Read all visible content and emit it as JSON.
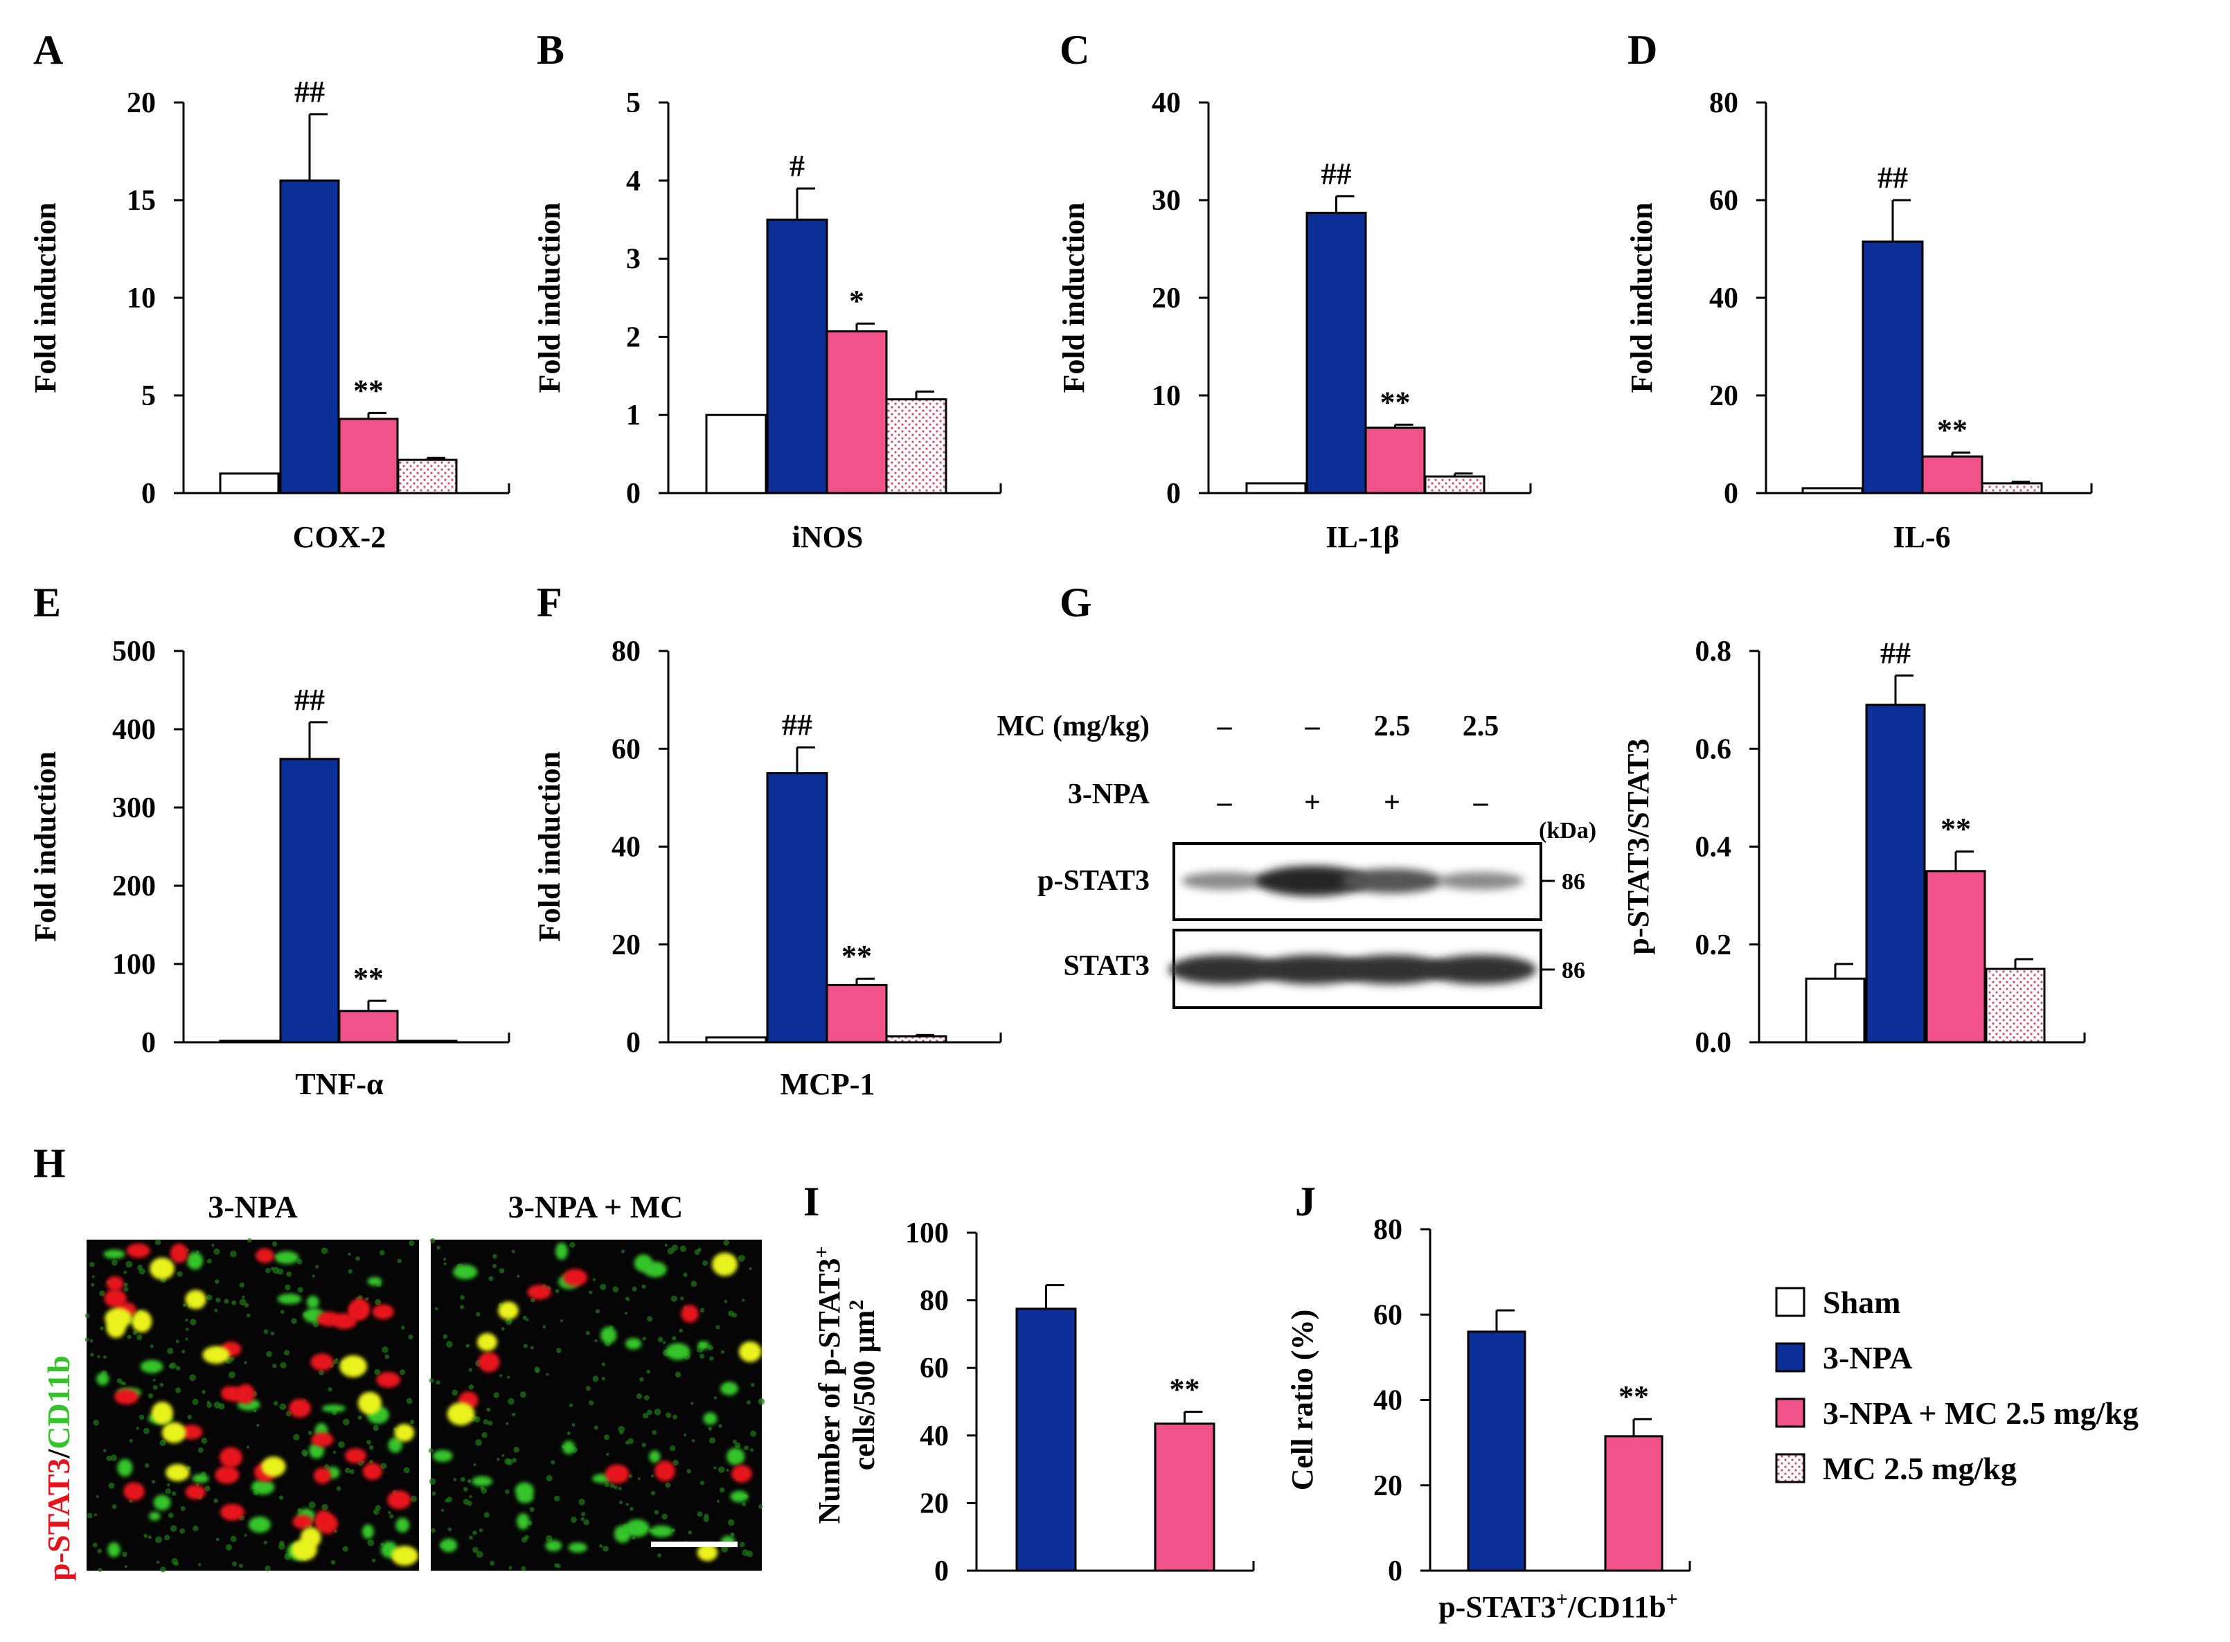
{
  "colors": {
    "sham": "#ffffff",
    "npa": "#0b2f96",
    "npa_mc": "#f2528a",
    "mc": "#ffffff",
    "mc_dot": "#d14b6e",
    "red": "#e8121c",
    "green": "#34c42a"
  },
  "legend": [
    {
      "key": "sham",
      "label": "Sham"
    },
    {
      "key": "npa",
      "label": "3-NPA"
    },
    {
      "key": "npa_mc",
      "label": "3-NPA + MC 2.5 mg/kg"
    },
    {
      "key": "mc",
      "label": "MC 2.5 mg/kg"
    }
  ],
  "chart_data": [
    {
      "panel": "A",
      "type": "bar",
      "title": "",
      "xlabel": "COX-2",
      "ylabel": "Fold induction",
      "ylim": [
        0,
        20
      ],
      "yticks": [
        "0",
        "5",
        "10",
        "15",
        "20"
      ],
      "series": [
        {
          "name": "Sham",
          "value": 1.0,
          "error": 0
        },
        {
          "name": "3-NPA",
          "value": 16.0,
          "error": 3.4
        },
        {
          "name": "3-NPA + MC 2.5 mg/kg",
          "value": 3.8,
          "error": 0.3
        },
        {
          "name": "MC 2.5 mg/kg",
          "value": 1.7,
          "error": 0.1
        }
      ],
      "annotations": [
        {
          "series": 1,
          "text": "##"
        },
        {
          "series": 2,
          "text": "**"
        }
      ]
    },
    {
      "panel": "B",
      "type": "bar",
      "title": "",
      "xlabel": "iNOS",
      "ylabel": "Fold induction",
      "ylim": [
        0,
        5
      ],
      "yticks": [
        "0",
        "1",
        "2",
        "3",
        "4",
        "5"
      ],
      "series": [
        {
          "name": "Sham",
          "value": 1.0,
          "error": 0
        },
        {
          "name": "3-NPA",
          "value": 3.5,
          "error": 0.4
        },
        {
          "name": "3-NPA + MC 2.5 mg/kg",
          "value": 2.07,
          "error": 0.1
        },
        {
          "name": "MC 2.5 mg/kg",
          "value": 1.2,
          "error": 0.1
        }
      ],
      "annotations": [
        {
          "series": 1,
          "text": "#"
        },
        {
          "series": 2,
          "text": "*"
        }
      ]
    },
    {
      "panel": "C",
      "type": "bar",
      "title": "",
      "xlabel": "IL-1β",
      "ylabel": "Fold induction",
      "ylim": [
        0,
        40
      ],
      "yticks": [
        "0",
        "10",
        "20",
        "30",
        "40"
      ],
      "series": [
        {
          "name": "Sham",
          "value": 1.0,
          "error": 0
        },
        {
          "name": "3-NPA",
          "value": 28.7,
          "error": 1.7
        },
        {
          "name": "3-NPA + MC 2.5 mg/kg",
          "value": 6.7,
          "error": 0.3
        },
        {
          "name": "MC 2.5 mg/kg",
          "value": 1.7,
          "error": 0.3
        }
      ],
      "annotations": [
        {
          "series": 1,
          "text": "##"
        },
        {
          "series": 2,
          "text": "**"
        }
      ]
    },
    {
      "panel": "D",
      "type": "bar",
      "title": "",
      "xlabel": "IL-6",
      "ylabel": "Fold induction",
      "ylim": [
        0,
        80
      ],
      "yticks": [
        "0",
        "20",
        "40",
        "60",
        "80"
      ],
      "series": [
        {
          "name": "Sham",
          "value": 1.0,
          "error": 0
        },
        {
          "name": "3-NPA",
          "value": 51.5,
          "error": 8.5
        },
        {
          "name": "3-NPA + MC 2.5 mg/kg",
          "value": 7.5,
          "error": 0.8
        },
        {
          "name": "MC 2.5 mg/kg",
          "value": 2.0,
          "error": 0.3
        }
      ],
      "annotations": [
        {
          "series": 1,
          "text": "##"
        },
        {
          "series": 2,
          "text": "**"
        }
      ]
    },
    {
      "panel": "E",
      "type": "bar",
      "title": "",
      "xlabel": "TNF-α",
      "ylabel": "Fold induction",
      "ylim": [
        0,
        500
      ],
      "yticks": [
        "0",
        "100",
        "200",
        "300",
        "400",
        "500"
      ],
      "series": [
        {
          "name": "Sham",
          "value": 1.0,
          "error": 0
        },
        {
          "name": "3-NPA",
          "value": 362,
          "error": 47
        },
        {
          "name": "3-NPA + MC 2.5 mg/kg",
          "value": 40,
          "error": 13
        },
        {
          "name": "MC 2.5 mg/kg",
          "value": 1.5,
          "error": 0
        }
      ],
      "annotations": [
        {
          "series": 1,
          "text": "##"
        },
        {
          "series": 2,
          "text": "**"
        }
      ]
    },
    {
      "panel": "F",
      "type": "bar",
      "title": "",
      "xlabel": "MCP-1",
      "ylabel": "Fold induction",
      "ylim": [
        0,
        80
      ],
      "yticks": [
        "0",
        "20",
        "40",
        "60",
        "80"
      ],
      "series": [
        {
          "name": "Sham",
          "value": 1.0,
          "error": 0
        },
        {
          "name": "3-NPA",
          "value": 55,
          "error": 5.3
        },
        {
          "name": "3-NPA + MC 2.5 mg/kg",
          "value": 11.7,
          "error": 1.3
        },
        {
          "name": "MC 2.5 mg/kg",
          "value": 1.2,
          "error": 0.3
        }
      ],
      "annotations": [
        {
          "series": 1,
          "text": "##"
        },
        {
          "series": 2,
          "text": "**"
        }
      ]
    },
    {
      "panel": "G",
      "type": "bar",
      "title": "",
      "xlabel": "",
      "ylabel": "p-STAT3/STAT3",
      "ylim": [
        0,
        0.8
      ],
      "yticks": [
        "0.0",
        "0.2",
        "0.4",
        "0.6",
        "0.8"
      ],
      "series": [
        {
          "name": "Sham",
          "value": 0.13,
          "error": 0.03
        },
        {
          "name": "3-NPA",
          "value": 0.69,
          "error": 0.06
        },
        {
          "name": "3-NPA + MC 2.5 mg/kg",
          "value": 0.35,
          "error": 0.04
        },
        {
          "name": "MC 2.5 mg/kg",
          "value": 0.15,
          "error": 0.02
        }
      ],
      "annotations": [
        {
          "series": 1,
          "text": "##"
        },
        {
          "series": 2,
          "text": "**"
        }
      ]
    },
    {
      "panel": "I",
      "type": "bar",
      "title": "",
      "xlabel": "",
      "ylabel": "Number of p-STAT3+ cells/500 μm2",
      "ylim": [
        0,
        100
      ],
      "yticks": [
        "0",
        "20",
        "40",
        "60",
        "80",
        "100"
      ],
      "series": [
        {
          "name": "3-NPA",
          "value": 77.5,
          "error": 7
        },
        {
          "name": "3-NPA + MC 2.5 mg/kg",
          "value": 43.5,
          "error": 3.5
        }
      ],
      "annotations": [
        {
          "series": 1,
          "text": "**"
        }
      ]
    },
    {
      "panel": "J",
      "type": "bar",
      "title": "",
      "xlabel": "p-STAT3+/CD11b+",
      "ylabel": "Cell ratio (%)",
      "ylim": [
        0,
        80
      ],
      "yticks": [
        "0",
        "20",
        "40",
        "60",
        "80"
      ],
      "series": [
        {
          "name": "3-NPA",
          "value": 56,
          "error": 5
        },
        {
          "name": "3-NPA + MC 2.5 mg/kg",
          "value": 31.5,
          "error": 4
        }
      ],
      "annotations": [
        {
          "series": 1,
          "text": "**"
        }
      ]
    }
  ],
  "blot": {
    "panel": "G",
    "row1_label": "MC (mg/kg)",
    "row1_values": [
      "–",
      "–",
      "2.5",
      "2.5"
    ],
    "row2_label": "3-NPA",
    "row2_values": [
      "–",
      "+",
      "+",
      "–"
    ],
    "kda_label": "(kDa)",
    "bands": [
      {
        "label": "p-STAT3",
        "kda": "86",
        "intensity": [
          0.35,
          1.0,
          0.7,
          0.35
        ]
      },
      {
        "label": "STAT3",
        "kda": "86",
        "intensity": [
          0.95,
          0.95,
          0.95,
          0.95
        ]
      }
    ]
  },
  "panel_h": {
    "letter": "H",
    "side_label_parts": [
      {
        "text": "p-STAT3",
        "color": "red"
      },
      {
        "text": "/",
        "color": "black"
      },
      {
        "text": "CD11b",
        "color": "green"
      }
    ],
    "image_titles": [
      "3-NPA",
      "3-NPA + MC"
    ]
  },
  "labels": {
    "I_ylabel_line1": "Number of p-STAT3",
    "I_ylabel_sup1": "+",
    "I_ylabel_line2": "cells/500 μm",
    "I_ylabel_sup2": "2",
    "J_xlabel_a": "p-STAT3",
    "J_xlabel_b": "/CD11b",
    "J_sup": "+"
  }
}
